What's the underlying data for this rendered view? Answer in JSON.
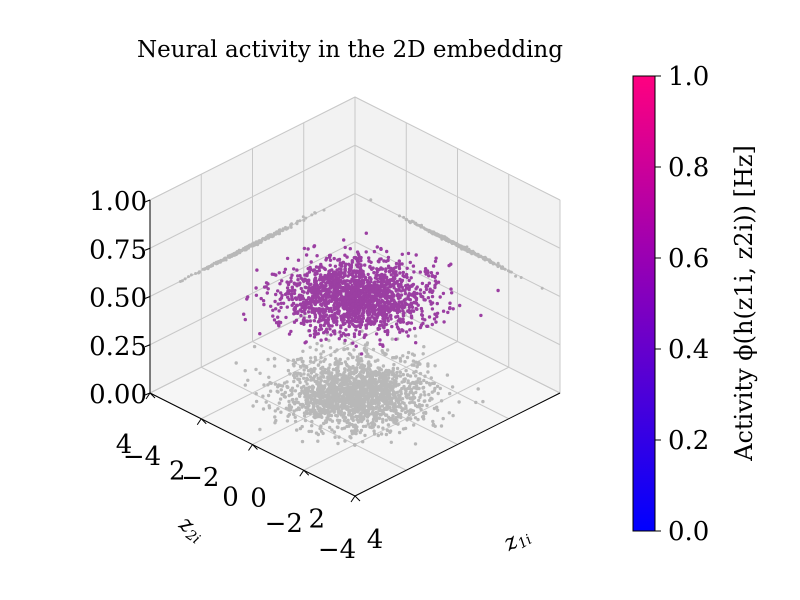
{
  "chart_data": {
    "type": "scatter",
    "title": "Neural activity in the 2D embedding",
    "xlabel": "z1i",
    "ylabel": "z2i",
    "zlim": [
      0,
      1
    ],
    "xlim": [
      -4,
      4
    ],
    "ylim": [
      -4,
      4
    ],
    "x_ticks": [
      "−4",
      "−2",
      "0",
      "2",
      "4"
    ],
    "y_ticks": [
      "−4",
      "−2",
      "0",
      "2",
      "4"
    ],
    "z_ticks": [
      "0.00",
      "0.25",
      "0.50",
      "0.75",
      "1.00"
    ],
    "grid": true,
    "series": [
      {
        "name": "",
        "z": 0.5,
        "color": "#9b3fa2",
        "distribution": "gaussian-2d",
        "std": 1.0
      },
      {
        "name": "",
        "z": 0.0,
        "color": "#b8b8b8",
        "distribution": "gaussian-2d projection",
        "std": 1.0
      }
    ],
    "colorbar": {
      "label": "Activity ϕ(h(z1i, z2i)) [Hz]",
      "range": [
        0,
        1
      ],
      "ticks": [
        "0.0",
        "0.2",
        "0.4",
        "0.6",
        "0.8",
        "1.0"
      ],
      "colors": [
        "#0000ff",
        "#ff0080"
      ]
    }
  }
}
